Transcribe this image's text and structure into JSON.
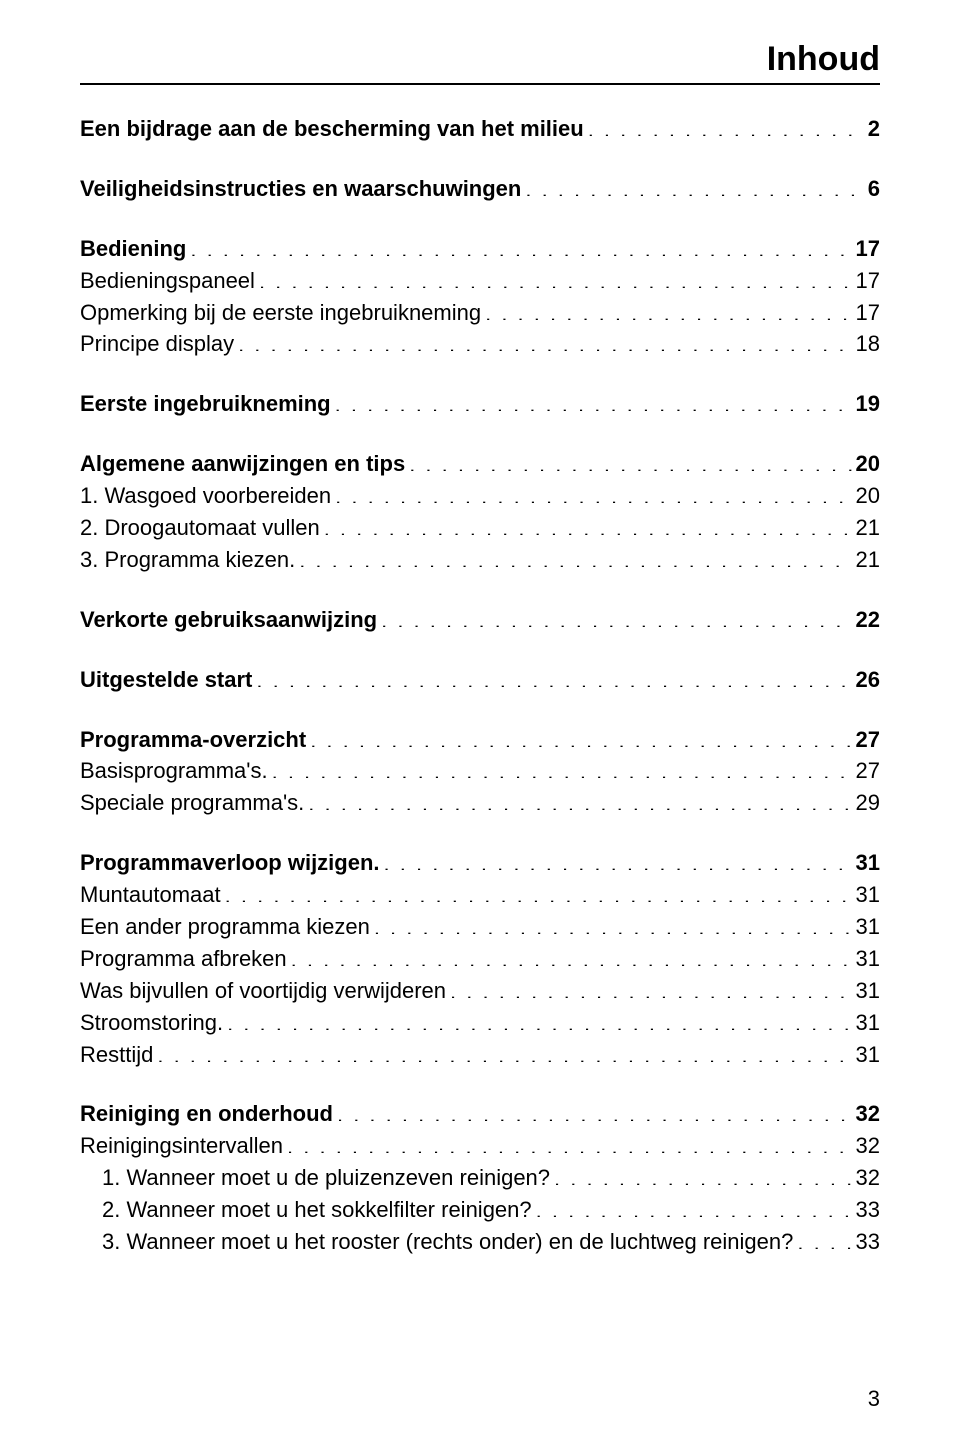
{
  "title": "Inhoud",
  "page_number": "3",
  "typography": {
    "title_fontsize_pt": 26,
    "body_fontsize_pt": 16,
    "font_family": "Helvetica",
    "text_color": "#000000",
    "background_color": "#ffffff",
    "rule_color": "#000000"
  },
  "toc": [
    {
      "label": "Een bijdrage aan de bescherming van het milieu",
      "page": "2",
      "bold": true,
      "gap_after": true
    },
    {
      "label": "Veiligheidsinstructies en waarschuwingen",
      "page": "6",
      "bold": true,
      "gap_after": true
    },
    {
      "label": "Bediening",
      "page": "17",
      "bold": true
    },
    {
      "label": "Bedieningspaneel",
      "page": "17",
      "bold": false
    },
    {
      "label": "Opmerking bij de eerste ingebruikneming",
      "page": "17",
      "bold": false
    },
    {
      "label": "Principe display",
      "page": "18",
      "bold": false,
      "gap_after": true
    },
    {
      "label": "Eerste ingebruikneming",
      "page": "19",
      "bold": true,
      "gap_after": true
    },
    {
      "label": "Algemene aanwijzingen en tips",
      "page": "20",
      "bold": true
    },
    {
      "label": "1. Wasgoed voorbereiden",
      "page": "20",
      "bold": false
    },
    {
      "label": "2. Droogautomaat vullen",
      "page": "21",
      "bold": false
    },
    {
      "label": "3. Programma kiezen.",
      "page": "21",
      "bold": false,
      "gap_after": true
    },
    {
      "label": "Verkorte gebruiksaanwijzing",
      "page": "22",
      "bold": true,
      "gap_after": true
    },
    {
      "label": "Uitgestelde start",
      "page": "26",
      "bold": true,
      "gap_after": true
    },
    {
      "label": "Programma-overzicht",
      "page": "27",
      "bold": true
    },
    {
      "label": "Basisprogramma's.",
      "page": "27",
      "bold": false
    },
    {
      "label": "Speciale programma's.",
      "page": "29",
      "bold": false,
      "gap_after": true
    },
    {
      "label": "Programmaverloop wijzigen.",
      "page": "31",
      "bold": true
    },
    {
      "label": "Muntautomaat",
      "page": "31",
      "bold": false
    },
    {
      "label": "Een ander programma kiezen",
      "page": "31",
      "bold": false
    },
    {
      "label": "Programma afbreken",
      "page": "31",
      "bold": false
    },
    {
      "label": "Was bijvullen of voortijdig verwijderen",
      "page": "31",
      "bold": false
    },
    {
      "label": "Stroomstoring.",
      "page": "31",
      "bold": false
    },
    {
      "label": "Resttijd",
      "page": "31",
      "bold": false,
      "gap_after": true
    },
    {
      "label": "Reiniging en onderhoud",
      "page": "32",
      "bold": true
    },
    {
      "label": "Reinigingsintervallen",
      "page": "32",
      "bold": false
    },
    {
      "label": "1. Wanneer moet u de pluizenzeven reinigen?",
      "page": "32",
      "bold": false,
      "indent": 1
    },
    {
      "label": "2. Wanneer moet u het sokkelfilter reinigen?",
      "page": "33",
      "bold": false,
      "indent": 1
    },
    {
      "label": "3. Wanneer moet u het rooster (rechts onder) en de luchtweg reinigen?",
      "page": "33",
      "bold": false,
      "indent": 1
    }
  ]
}
